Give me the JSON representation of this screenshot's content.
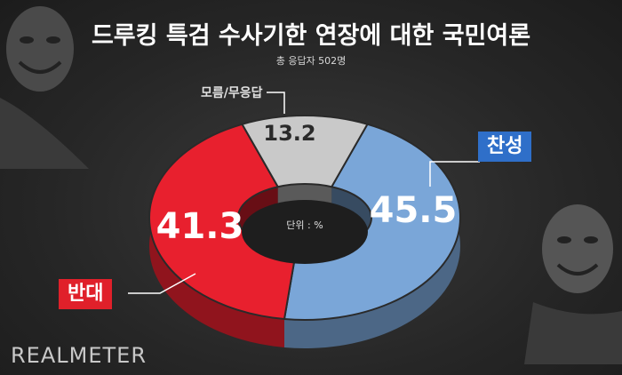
{
  "chart_data": {
    "type": "pie",
    "title": "드루킹 특검 수사기한 연장에 대한 국민여론",
    "subtitle": "총 응답자 502명",
    "unit_label": "단위 : %",
    "slices": [
      {
        "name": "찬성",
        "value": 45.5,
        "color": "#7aa6d8"
      },
      {
        "name": "반대",
        "value": 41.3,
        "color": "#e8202e"
      },
      {
        "name": "모름/무응답",
        "value": 13.2,
        "color": "#c9c9c9"
      }
    ]
  },
  "brand": "REALMETER"
}
